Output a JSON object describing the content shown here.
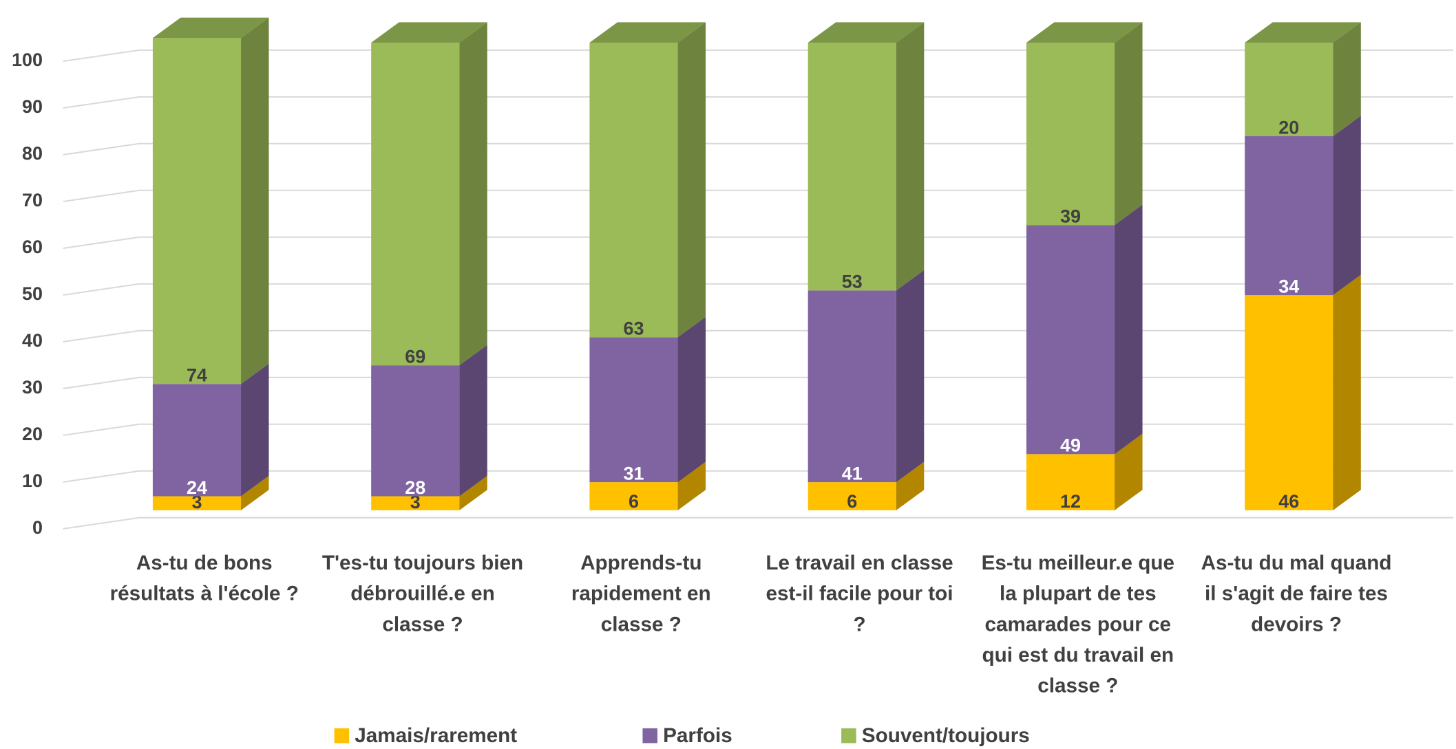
{
  "chart_data": {
    "type": "bar3d_stacked",
    "categories": [
      "As-tu de bons résultats à l'école ?",
      "T'es-tu toujours bien débrouillé.e en classe ?",
      "Apprends-tu rapidement en classe ?",
      "Le travail en classe est-il facile pour toi ?",
      "Es-tu meilleur.e que la plupart de tes camarades pour ce qui est du travail en classe ?",
      "As-tu du mal quand il s'agit de faire tes devoirs ?"
    ],
    "series": [
      {
        "name": "Jamais/rarement",
        "color": "#ffc000",
        "values": [
          3,
          3,
          6,
          6,
          12,
          46
        ]
      },
      {
        "name": "Parfois",
        "color": "#8064a2",
        "values": [
          24,
          28,
          31,
          41,
          49,
          34
        ]
      },
      {
        "name": "Souvent/toujours",
        "color": "#9bbb59",
        "values": [
          74,
          69,
          63,
          53,
          39,
          20
        ]
      }
    ],
    "ylim": [
      0,
      100
    ],
    "yticks": [
      0,
      10,
      20,
      30,
      40,
      50,
      60,
      70,
      80,
      90,
      100
    ],
    "grid": true,
    "legend": "bottom"
  }
}
